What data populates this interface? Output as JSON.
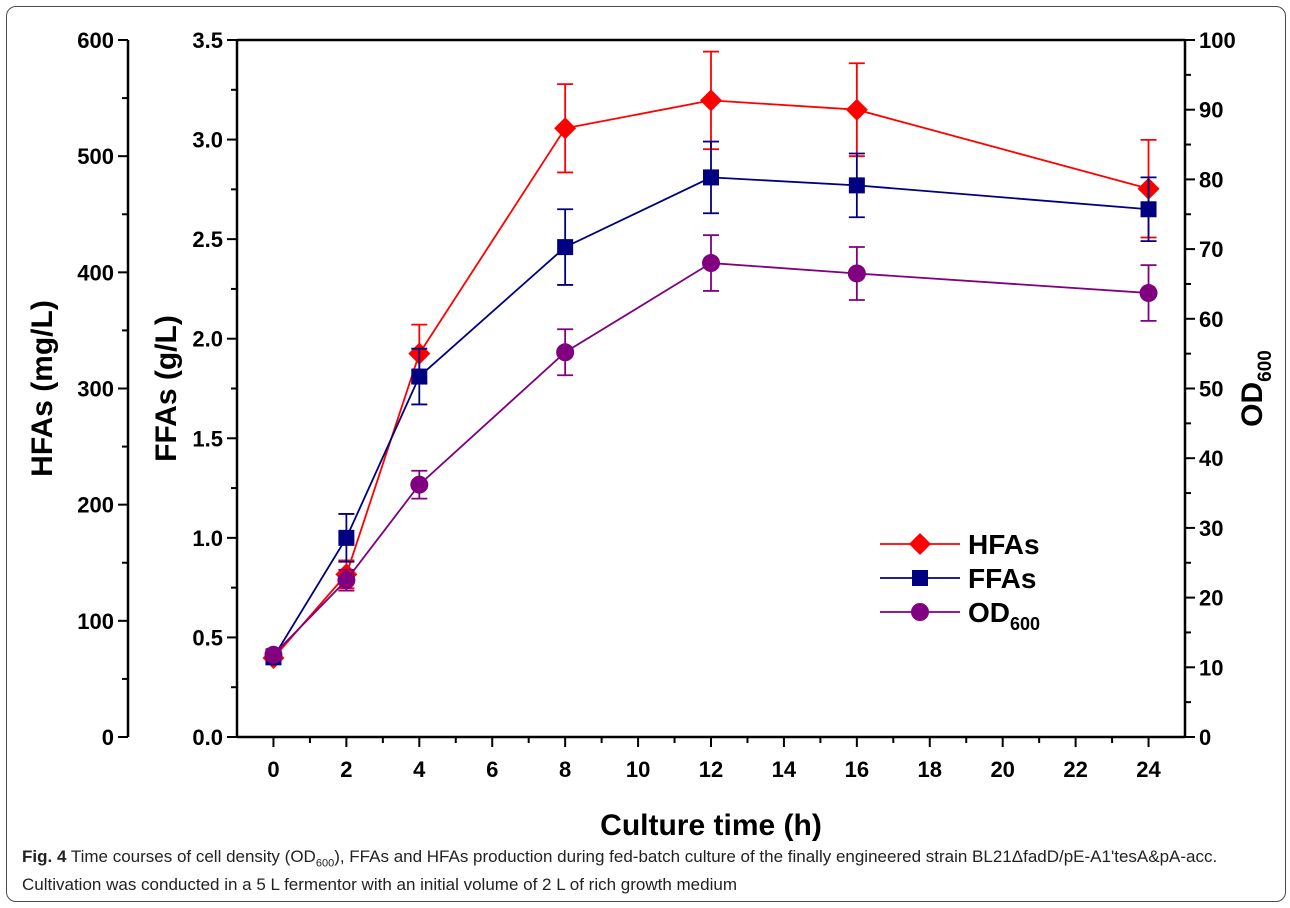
{
  "chart_data": {
    "type": "line",
    "xlabel": "Culture time (h)",
    "x_ticks": [
      "0",
      "2",
      "4",
      "6",
      "8",
      "10",
      "12",
      "14",
      "16",
      "18",
      "20",
      "22",
      "24"
    ],
    "x_range": [
      -1,
      25
    ],
    "y_axes": {
      "hfas": {
        "label": "HFAs (mg/L)",
        "range": [
          0,
          600
        ],
        "ticks": [
          "0",
          "100",
          "200",
          "300",
          "400",
          "500",
          "600"
        ]
      },
      "ffas": {
        "label": "FFAs (g/L)",
        "range": [
          0,
          3.5
        ],
        "ticks": [
          "0.0",
          "0.5",
          "1.0",
          "1.5",
          "2.0",
          "2.5",
          "3.0",
          "3.5"
        ]
      },
      "od": {
        "label": "OD",
        "label_sub": "600",
        "range": [
          0,
          100
        ],
        "ticks": [
          "0",
          "10",
          "20",
          "30",
          "40",
          "50",
          "60",
          "70",
          "80",
          "90",
          "100"
        ]
      }
    },
    "series": [
      {
        "name": "HFAs",
        "axis": "hfas",
        "color": "#ff0000",
        "marker": "diamond",
        "x": [
          0,
          2,
          4,
          8,
          12,
          16,
          24
        ],
        "y": [
          68,
          140,
          330,
          524,
          548,
          540,
          472
        ],
        "err": [
          0,
          12,
          25,
          38,
          42,
          40,
          42
        ]
      },
      {
        "name": "FFAs",
        "axis": "ffas",
        "color": "#000080",
        "marker": "square",
        "x": [
          0,
          2,
          4,
          8,
          12,
          16,
          24
        ],
        "y": [
          0.4,
          1.0,
          1.81,
          2.46,
          2.81,
          2.77,
          2.65
        ],
        "err": [
          0,
          0.12,
          0.14,
          0.19,
          0.18,
          0.16,
          0.16
        ]
      },
      {
        "name": "OD",
        "name_sub": "600",
        "axis": "od",
        "color": "#800080",
        "marker": "circle",
        "x": [
          0,
          2,
          4,
          8,
          12,
          16,
          24
        ],
        "y": [
          11.8,
          22.5,
          36.2,
          55.2,
          68,
          66.5,
          63.7
        ],
        "err": [
          0.8,
          1.5,
          2,
          3.3,
          4,
          3.8,
          4
        ]
      }
    ],
    "legend_position": "lower-right"
  },
  "caption": {
    "label": "Fig. 4",
    "text_before": " Time courses of cell density (OD",
    "sub": "600",
    "text_after": "), FFAs and HFAs production during fed-batch culture of the finally engineered strain BL21ΔfadD/pE-A1'tesA&pA-acc. Cultivation was conducted in a 5 L fermentor with an initial volume of 2 L of rich growth medium"
  }
}
